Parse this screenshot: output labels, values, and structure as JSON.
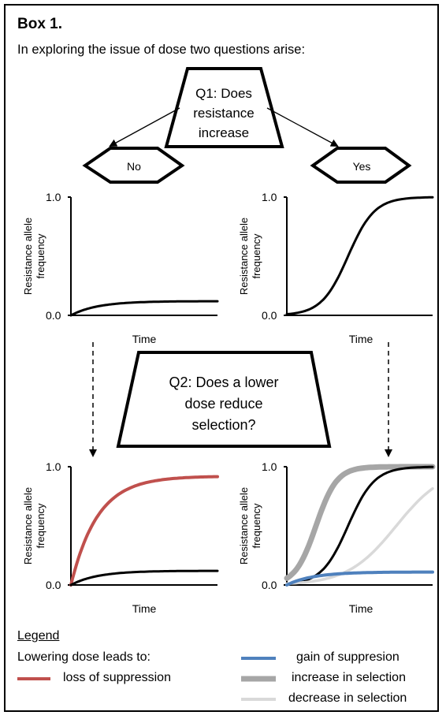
{
  "box": {
    "title": "Box 1.",
    "intro": "In exploring the issue of dose two questions arise:"
  },
  "questions": {
    "q1_lines": [
      "Q1: Does",
      "resistance",
      "increase"
    ],
    "q2_lines": [
      "Q2: Does a lower",
      "dose reduce",
      "selection?"
    ],
    "no_label": "No",
    "yes_label": "Yes"
  },
  "axes": {
    "ylabel_line1": "Resistance allele",
    "ylabel_line2": "frequency",
    "xlabel": "Time",
    "y_top_label": "1.0",
    "y_bottom_label": "0.0"
  },
  "legend": {
    "title": "Legend",
    "subtitle": "Lowering dose leads to:",
    "items": [
      {
        "key": "loss",
        "label": "loss of suppression",
        "color": "#c0504d"
      },
      {
        "key": "gain",
        "label": "gain of suppresion",
        "color": "#4f81bd"
      },
      {
        "key": "increase",
        "label": "increase in selection",
        "color": "#a6a6a6"
      },
      {
        "key": "decrease",
        "label": "decrease in selection",
        "color": "#d9d9d9"
      }
    ]
  },
  "colors": {
    "baseline": "#000000",
    "loss": "#c0504d",
    "gain": "#4f81bd",
    "increase": "#a6a6a6",
    "decrease": "#d9d9d9"
  },
  "chart_data": [
    {
      "type": "line",
      "panel": "top-left",
      "xlabel": "Time",
      "ylabel": "Resistance allele frequency",
      "ylim": [
        0,
        1
      ],
      "x": [
        0,
        1
      ],
      "series": [
        {
          "key": "baseline",
          "shape": "saturating",
          "plateau": 0.12
        }
      ]
    },
    {
      "type": "line",
      "panel": "top-right",
      "xlabel": "Time",
      "ylabel": "Resistance allele frequency",
      "ylim": [
        0,
        1
      ],
      "x": [
        0,
        1
      ],
      "series": [
        {
          "key": "baseline",
          "shape": "sigmoid",
          "plateau": 1.0
        }
      ]
    },
    {
      "type": "line",
      "panel": "bottom-left",
      "xlabel": "Time",
      "ylabel": "Resistance allele frequency",
      "ylim": [
        0,
        1
      ],
      "x": [
        0,
        1
      ],
      "series": [
        {
          "key": "loss",
          "shape": "saturating",
          "plateau": 0.92
        },
        {
          "key": "baseline",
          "shape": "saturating",
          "plateau": 0.12
        }
      ]
    },
    {
      "type": "line",
      "panel": "bottom-right",
      "xlabel": "Time",
      "ylabel": "Resistance allele frequency",
      "ylim": [
        0,
        1
      ],
      "x": [
        0,
        1
      ],
      "series": [
        {
          "key": "increase",
          "shape": "sigmoid-fast",
          "plateau": 1.0
        },
        {
          "key": "baseline",
          "shape": "sigmoid",
          "plateau": 1.0
        },
        {
          "key": "decrease",
          "shape": "sigmoid-slow",
          "plateau": 0.75
        },
        {
          "key": "gain",
          "shape": "saturating",
          "plateau": 0.11
        }
      ]
    }
  ]
}
